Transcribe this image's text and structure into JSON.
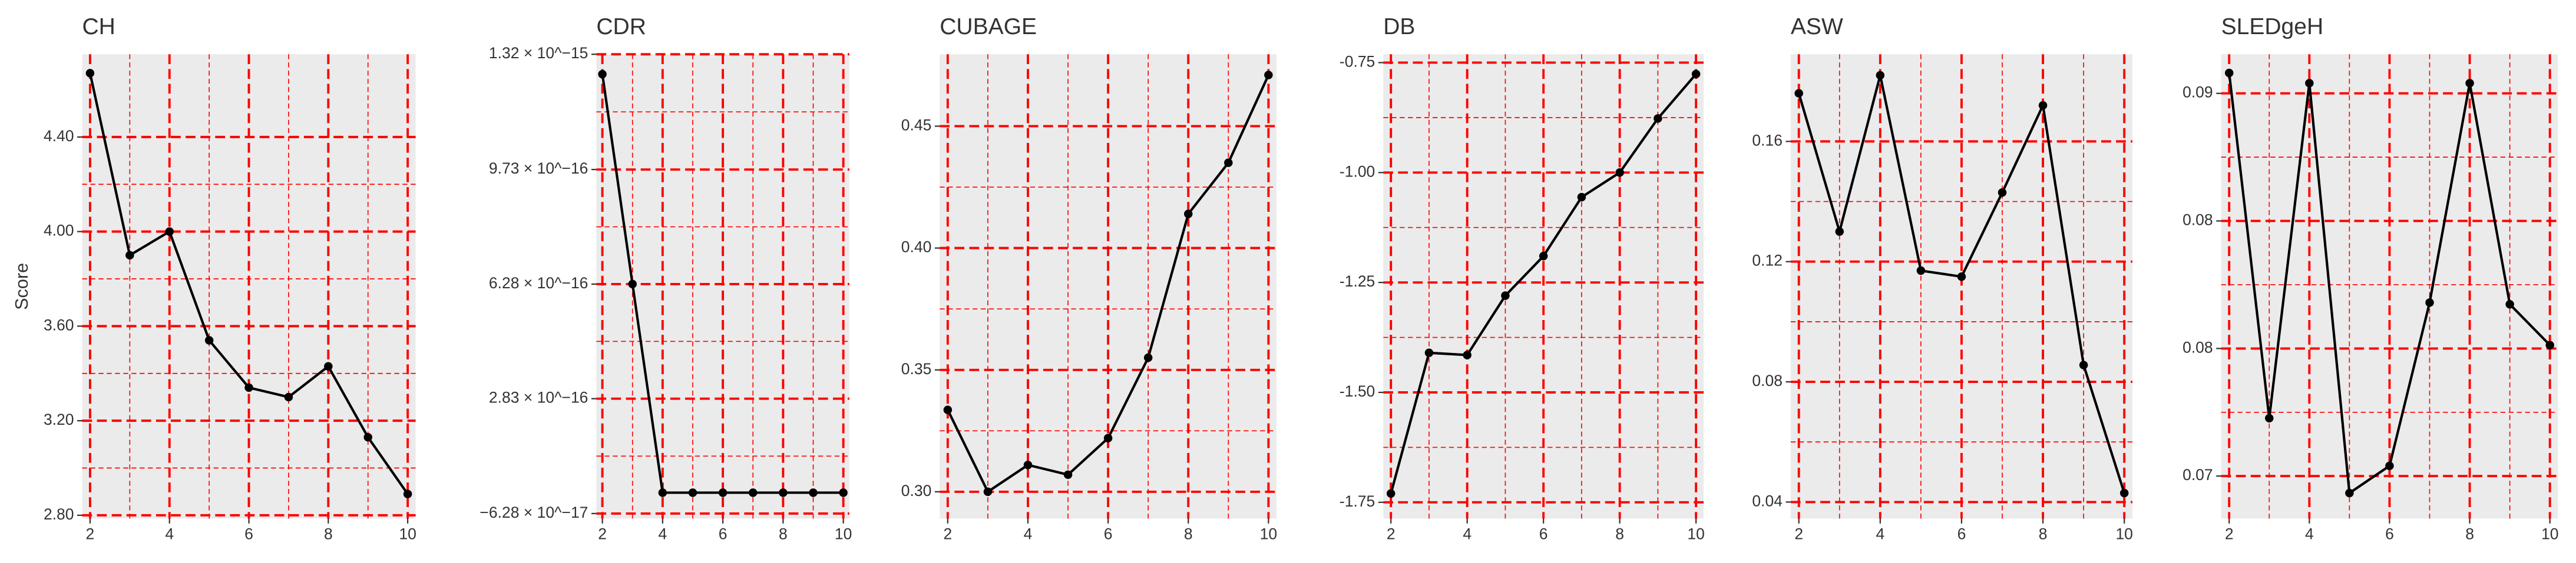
{
  "chart_data": [
    {
      "type": "line",
      "title": "CH",
      "y_label": "Score",
      "x": [
        2,
        3,
        4,
        5,
        6,
        7,
        8,
        9,
        10
      ],
      "values": [
        4.67,
        3.9,
        4.0,
        3.54,
        3.34,
        3.3,
        3.43,
        3.13,
        2.89
      ],
      "color": "#000000",
      "grid": true,
      "xlim": [
        1.8,
        10.2
      ],
      "xticks": [
        2,
        4,
        6,
        8,
        10
      ],
      "ylim": [
        2.786,
        4.75
      ],
      "yticks": [
        {
          "value": 2.8,
          "label": "2.80"
        },
        {
          "value": 3.2,
          "label": "3.20"
        },
        {
          "value": 3.6,
          "label": "3.60"
        },
        {
          "value": 4.0,
          "label": "4.00"
        },
        {
          "value": 4.4,
          "label": "4.40"
        }
      ]
    },
    {
      "type": "line",
      "title": "CDR",
      "x": [
        2,
        3,
        4,
        5,
        6,
        7,
        8,
        9,
        10
      ],
      "values": [
        1.26e-15,
        6.28e-16,
        0,
        0,
        0,
        0,
        0,
        0,
        0
      ],
      "color": "#000000",
      "grid": true,
      "xlim": [
        1.8,
        10.2
      ],
      "xticks": [
        2,
        4,
        6,
        8,
        10
      ],
      "ylim": [
        -7.8e-17,
        1.32e-15
      ],
      "yticks": [
        {
          "value": -6.28e-17,
          "label": "−6.28 × 10^−17"
        },
        {
          "value": 2.83e-16,
          "label": "2.83 × 10^−16"
        },
        {
          "value": 6.28e-16,
          "label": "6.28 × 10^−16"
        },
        {
          "value": 9.73e-16,
          "label": "9.73 × 10^−16"
        },
        {
          "value": 1.32e-15,
          "label": "1.32 × 10^−15"
        }
      ]
    },
    {
      "type": "line",
      "title": "CUBAGE",
      "x": [
        2,
        3,
        4,
        5,
        6,
        7,
        8,
        9,
        10
      ],
      "values": [
        0.3336,
        0.3,
        0.311,
        0.307,
        0.322,
        0.355,
        0.414,
        0.435,
        0.471
      ],
      "color": "#000000",
      "grid": true,
      "xlim": [
        1.8,
        10.2
      ],
      "xticks": [
        2,
        4,
        6,
        8,
        10
      ],
      "ylim": [
        0.289,
        0.4795
      ],
      "yticks": [
        {
          "value": 0.3,
          "label": "0.30"
        },
        0.35,
        {
          "value": 0.4,
          "label": "0.40"
        },
        0.45
      ]
    },
    {
      "type": "line",
      "title": "DB",
      "x": [
        2,
        3,
        4,
        5,
        6,
        7,
        8,
        9,
        10
      ],
      "values": [
        -1.73,
        -1.41,
        -1.415,
        -1.28,
        -1.19,
        -1.056,
        -1.0,
        -0.877,
        -0.776
      ],
      "color": "#000000",
      "grid": true,
      "xlim": [
        1.8,
        10.2
      ],
      "xticks": [
        2,
        4,
        6,
        8,
        10
      ],
      "ylim": [
        -1.787,
        -0.731
      ],
      "yticks": [
        -1.75,
        {
          "value": -1.5,
          "label": "-1.50"
        },
        -1.25,
        {
          "value": -1.0,
          "label": "-1.00"
        },
        -0.75
      ]
    },
    {
      "type": "line",
      "title": "ASW",
      "x": [
        2,
        3,
        4,
        5,
        6,
        7,
        8,
        9,
        10
      ],
      "values": [
        0.176,
        0.13,
        0.182,
        0.117,
        0.115,
        0.143,
        0.172,
        0.0856,
        0.043
      ],
      "color": "#000000",
      "grid": true,
      "xlim": [
        1.8,
        10.2
      ],
      "xticks": [
        2,
        4,
        6,
        8,
        10
      ],
      "ylim": [
        0.0345,
        0.189
      ],
      "yticks": [
        0.04,
        0.08,
        0.12,
        0.16
      ]
    },
    {
      "type": "line",
      "title": "SLEDgeH",
      "x": [
        2,
        3,
        4,
        5,
        6,
        7,
        8,
        9,
        10
      ],
      "values": [
        0.0937,
        0.0734,
        0.0931,
        0.069,
        0.0706,
        0.0802,
        0.0931,
        0.0801,
        0.0777
      ],
      "color": "#000000",
      "grid": true,
      "xlim": [
        1.8,
        10.2
      ],
      "xticks": [
        2,
        4,
        6,
        8,
        10
      ],
      "ylim": [
        0.0675,
        0.0948
      ],
      "yticks": [
        {
          "value": 0.07,
          "label": "0.07"
        },
        {
          "value": 0.0775,
          "label": "0.08"
        },
        {
          "value": 0.085,
          "label": "0.08"
        },
        {
          "value": 0.0925,
          "label": "0.09"
        }
      ]
    }
  ]
}
